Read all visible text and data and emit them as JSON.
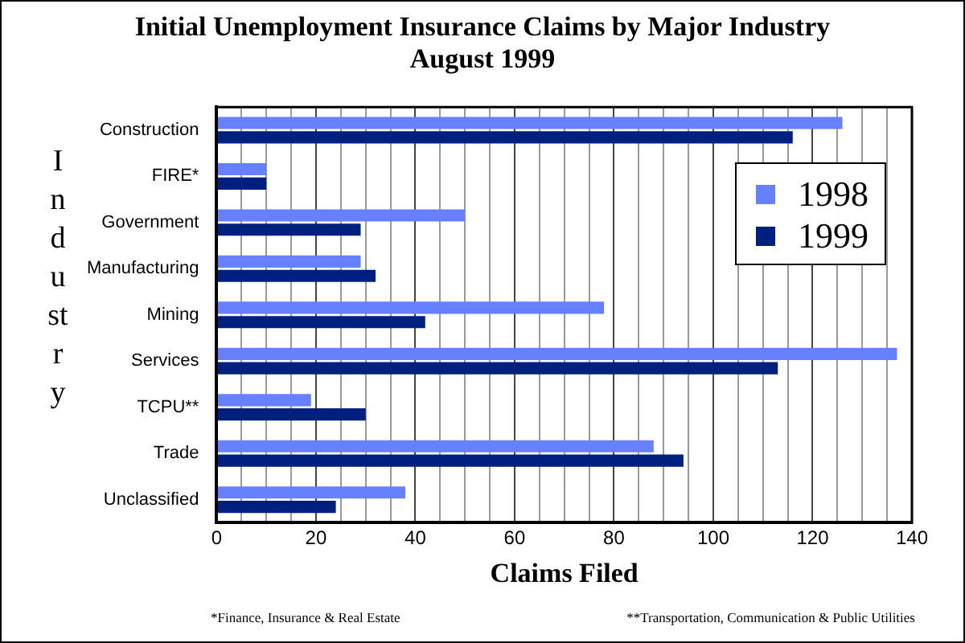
{
  "chart_data": {
    "type": "bar",
    "orientation": "horizontal",
    "title": "Initial Unemployment Insurance Claims by Major Industry\nAugust 1999",
    "xlabel": "Claims Filed",
    "ylabel": "Industry",
    "categories": [
      "Construction",
      "FIRE*",
      "Government",
      "Manufacturing",
      "Mining",
      "Services",
      "TCPU**",
      "Trade",
      "Unclassified"
    ],
    "series": [
      {
        "name": "1998",
        "color": "#6680ff",
        "values": [
          126,
          10,
          50,
          29,
          78,
          137,
          19,
          88,
          38
        ]
      },
      {
        "name": "1999",
        "color": "#002080",
        "values": [
          116,
          10,
          29,
          32,
          42,
          113,
          30,
          94,
          24
        ]
      }
    ],
    "xlim": [
      0,
      140
    ],
    "xticks": [
      0,
      {
        "value": 5,
        "label": null
      },
      {
        "value": 10,
        "label": null
      },
      {
        "value": 15,
        "label": null
      },
      20,
      {
        "value": 25,
        "label": null
      },
      {
        "value": 30,
        "label": null
      },
      {
        "value": 35,
        "label": null
      },
      40,
      {
        "value": 45,
        "label": null
      },
      {
        "value": 50,
        "label": null
      },
      {
        "value": 55,
        "label": null
      },
      60,
      {
        "value": 65,
        "label": null
      },
      {
        "value": 70,
        "label": null
      },
      {
        "value": 75,
        "label": null
      },
      80,
      {
        "value": 85,
        "label": null
      },
      {
        "value": 90,
        "label": null
      },
      {
        "value": 95,
        "label": null
      },
      100,
      {
        "value": 105,
        "label": null
      },
      {
        "value": 110,
        "label": null
      },
      {
        "value": 115,
        "label": null
      },
      120,
      {
        "value": 125,
        "label": null
      },
      {
        "value": 130,
        "label": null
      },
      {
        "value": 135,
        "label": null
      },
      140
    ],
    "grid": "x",
    "legend": "top right",
    "annotations": [
      "*Finance, Insurance & Real Estate",
      "**Transportation, Communication & Public Utilities"
    ]
  }
}
